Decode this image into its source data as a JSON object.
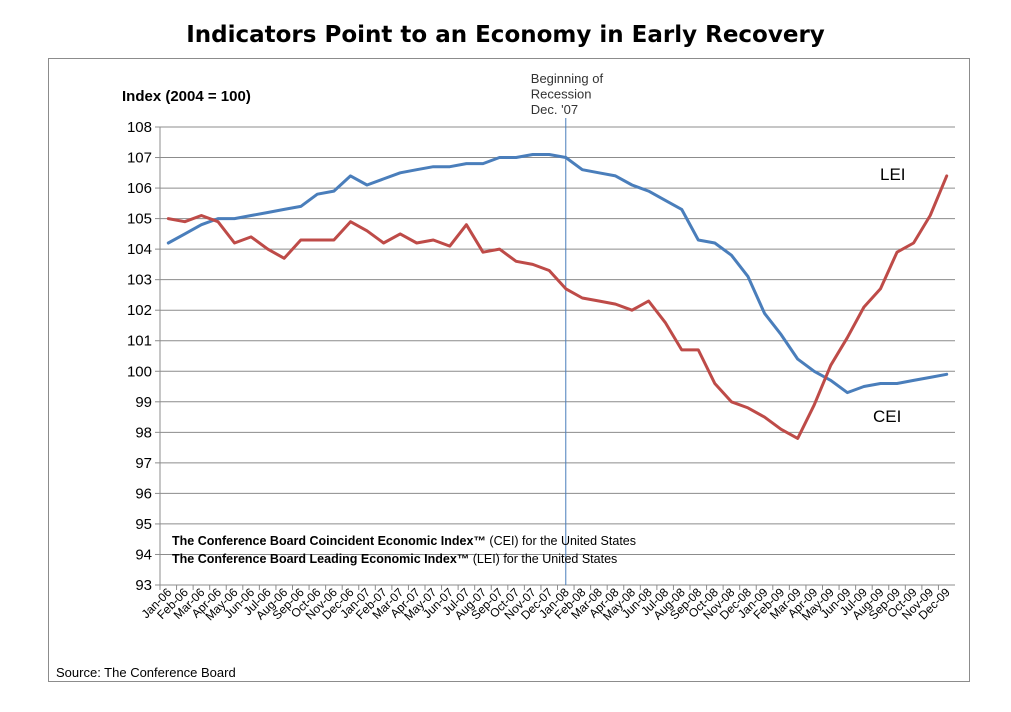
{
  "chart_data": {
    "type": "line",
    "title": "Indicators Point to an Economy in Early Recovery",
    "ylabel": "Index (2004 = 100)",
    "ylim": [
      93,
      108
    ],
    "yticks": [
      93,
      94,
      95,
      96,
      97,
      98,
      99,
      100,
      101,
      102,
      103,
      104,
      105,
      106,
      107,
      108
    ],
    "grid": true,
    "categories": [
      "Jan-06",
      "Feb-06",
      "Mar-06",
      "Apr-06",
      "May-06",
      "Jun-06",
      "Jul-06",
      "Aug-06",
      "Sep-06",
      "Oct-06",
      "Nov-06",
      "Dec-06",
      "Jan-07",
      "Feb-07",
      "Mar-07",
      "Apr-07",
      "May-07",
      "Jun-07",
      "Jul-07",
      "Aug-07",
      "Sep-07",
      "Oct-07",
      "Nov-07",
      "Dec-07",
      "Jan-08",
      "Feb-08",
      "Mar-08",
      "Apr-08",
      "May-08",
      "Jun-08",
      "Jul-08",
      "Aug-08",
      "Sep-08",
      "Oct-08",
      "Nov-08",
      "Dec-08",
      "Jan-09",
      "Feb-09",
      "Mar-09",
      "Apr-09",
      "May-09",
      "Jun-09",
      "Jul-09",
      "Aug-09",
      "Sep-09",
      "Oct-09",
      "Nov-09",
      "Dec-09"
    ],
    "series": [
      {
        "name": "CEI",
        "color": "#4a7ebb",
        "values": [
          104.2,
          104.5,
          104.8,
          105.0,
          105.0,
          105.1,
          105.2,
          105.3,
          105.4,
          105.8,
          105.9,
          106.4,
          106.1,
          106.3,
          106.5,
          106.6,
          106.7,
          106.7,
          106.8,
          106.8,
          107.0,
          107.0,
          107.1,
          107.1,
          107.0,
          106.6,
          106.5,
          106.4,
          106.1,
          105.9,
          105.6,
          105.3,
          104.3,
          104.2,
          103.8,
          103.1,
          101.9,
          101.2,
          100.4,
          100.0,
          99.7,
          99.3,
          99.5,
          99.6,
          99.6,
          99.7,
          99.8,
          99.9
        ]
      },
      {
        "name": "LEI",
        "color": "#be4b48",
        "values": [
          105.0,
          104.9,
          105.1,
          104.9,
          104.2,
          104.4,
          104.0,
          103.7,
          104.3,
          104.3,
          104.3,
          104.9,
          104.6,
          104.2,
          104.5,
          104.2,
          104.3,
          104.1,
          104.8,
          103.9,
          104.0,
          103.6,
          103.5,
          103.3,
          102.7,
          102.4,
          102.3,
          102.2,
          102.0,
          102.3,
          101.6,
          100.7,
          100.7,
          99.6,
          99.0,
          98.8,
          98.5,
          98.1,
          97.8,
          98.9,
          100.2,
          101.1,
          102.1,
          102.7,
          103.9,
          104.2,
          105.1,
          106.4
        ]
      }
    ],
    "annotations": {
      "recession_marker": {
        "at": "Jan-08",
        "lines": [
          "Beginning of",
          "Recession",
          "Dec. '07"
        ]
      },
      "notes": [
        {
          "bold": "The Conference Board Coincident Economic Index™",
          "rest": " (CEI) for the United States"
        },
        {
          "bold": "The Conference Board Leading Economic Index™",
          "rest": " (LEI) for the United States"
        }
      ]
    }
  },
  "source": "Source: The Conference Board"
}
